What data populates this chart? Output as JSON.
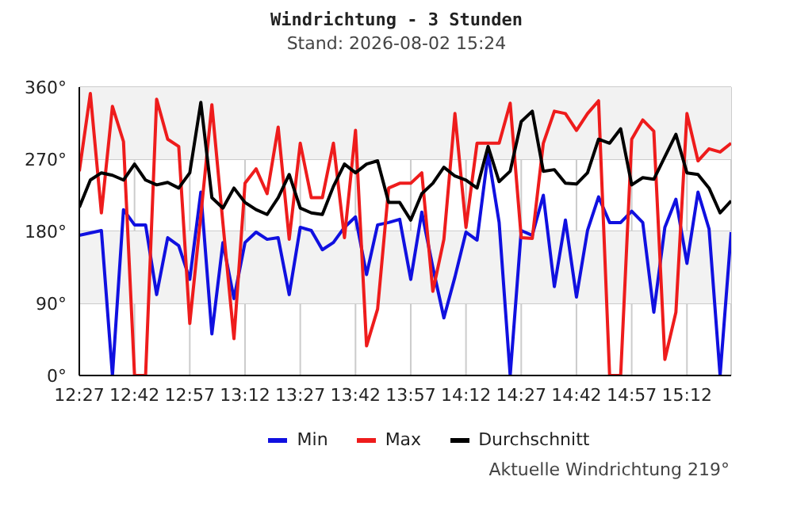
{
  "chart_data": {
    "type": "line",
    "title": "Windrichtung - 3 Stunden",
    "subtitle": "Stand: 2026-08-02 15:24",
    "annotations": [
      "Aktuelle Windrichtung 219°"
    ],
    "x": [
      12.45,
      12.5,
      12.55,
      12.6,
      12.65,
      12.7,
      12.75,
      12.8,
      12.85,
      12.9,
      12.95,
      13,
      13.05,
      13.1,
      13.15,
      13.2,
      13.25,
      13.3,
      13.35,
      13.4,
      13.45,
      13.5,
      13.55,
      13.6,
      13.65,
      13.7,
      13.75,
      13.8,
      13.85,
      13.9,
      13.95,
      14,
      14.05,
      14.1,
      14.15,
      14.2,
      14.25,
      14.3,
      14.35,
      14.4,
      14.45,
      14.5,
      14.55,
      14.6,
      14.65,
      14.7,
      14.75,
      14.8,
      14.85,
      14.9,
      14.95,
      15,
      15.05,
      15.1,
      15.15,
      15.2,
      15.25,
      15.3,
      15.35,
      15.4
    ],
    "series": [
      {
        "name": "Min",
        "color": "#1010e0",
        "values": [
          175,
          178,
          181,
          0,
          207,
          188,
          188,
          101,
          172,
          162,
          120,
          229,
          52,
          166,
          96,
          166,
          179,
          170,
          172,
          101,
          185,
          181,
          157,
          166,
          185,
          198,
          126,
          188,
          191,
          195,
          120,
          204,
          135,
          72,
          123,
          179,
          169,
          277,
          191,
          0,
          181,
          175,
          225,
          111,
          194,
          98,
          181,
          223,
          191,
          191,
          205,
          191,
          79,
          185,
          220,
          140,
          229,
          183,
          0,
          179
        ]
      },
      {
        "name": "Max",
        "color": "#ee1c1c",
        "values": [
          255,
          352,
          203,
          336,
          292,
          0,
          0,
          345,
          295,
          286,
          65,
          200,
          338,
          190,
          46,
          240,
          258,
          227,
          310,
          170,
          290,
          222,
          222,
          290,
          172,
          306,
          37,
          83,
          234,
          240,
          240,
          253,
          105,
          170,
          327,
          185,
          290,
          290,
          290,
          340,
          172,
          171,
          290,
          330,
          327,
          306,
          327,
          343,
          0,
          0,
          295,
          319,
          305,
          20,
          79,
          327,
          268,
          283,
          279,
          290
        ]
      },
      {
        "name": "Durchschnitt",
        "color": "#000000",
        "values": [
          210,
          244,
          253,
          250,
          244,
          264,
          244,
          238,
          241,
          234,
          253,
          341,
          222,
          209,
          234,
          216,
          207,
          201,
          222,
          251,
          209,
          203,
          201,
          236,
          264,
          253,
          264,
          268,
          216,
          216,
          194,
          227,
          240,
          260,
          249,
          244,
          234,
          286,
          242,
          255,
          317,
          330,
          255,
          257,
          240,
          239,
          253,
          295,
          290,
          308,
          238,
          247,
          245,
          273,
          301,
          253,
          251,
          234,
          203,
          218
        ]
      }
    ],
    "xlim": [
      12.45,
      15.4
    ],
    "xticks": [
      {
        "value": 12.45,
        "label": "12:27"
      },
      {
        "value": 12.7,
        "label": "12:42"
      },
      {
        "value": 12.95,
        "label": "12:57"
      },
      {
        "value": 13.2,
        "label": "13:12"
      },
      {
        "value": 13.45,
        "label": "13:27"
      },
      {
        "value": 13.7,
        "label": "13:42"
      },
      {
        "value": 13.95,
        "label": "13:57"
      },
      {
        "value": 14.2,
        "label": "14:12"
      },
      {
        "value": 14.45,
        "label": "14:27"
      },
      {
        "value": 14.7,
        "label": "14:42"
      },
      {
        "value": 14.95,
        "label": "14:57"
      },
      {
        "value": 15.2,
        "label": "15:12"
      }
    ],
    "ylim": [
      0,
      360
    ],
    "yticks": [
      {
        "value": 0,
        "label": "0°"
      },
      {
        "value": 90,
        "label": "90°"
      },
      {
        "value": 180,
        "label": "180°"
      },
      {
        "value": 270,
        "label": "270°"
      },
      {
        "value": 360,
        "label": "360°"
      }
    ],
    "bands": [
      {
        "axis": "y",
        "from": 90,
        "to": 180,
        "color": "#f2f2f2"
      },
      {
        "axis": "y",
        "from": 270,
        "to": 360,
        "color": "#f2f2f2"
      }
    ],
    "grid": true,
    "legend": "bottom",
    "marker": "none",
    "line_style": "solid"
  }
}
